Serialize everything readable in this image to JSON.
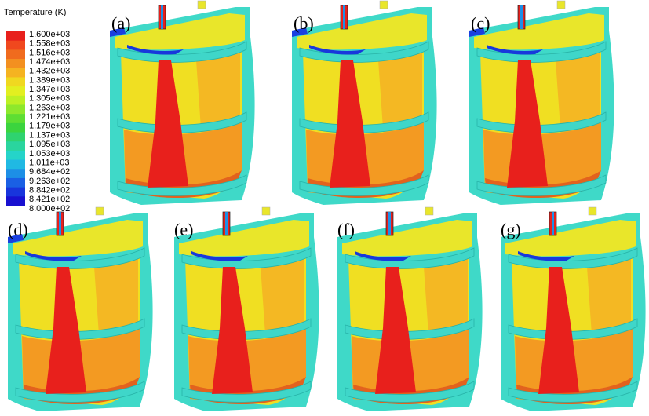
{
  "legend": {
    "title": "Temperature (K)",
    "labels": [
      "1.600e+03",
      "1.558e+03",
      "1.516e+03",
      "1.474e+03",
      "1.432e+03",
      "1.389e+03",
      "1.347e+03",
      "1.305e+03",
      "1.263e+03",
      "1.221e+03",
      "1.179e+03",
      "1.137e+03",
      "1.095e+03",
      "1.053e+03",
      "1.011e+03",
      "9.684e+02",
      "9.263e+02",
      "8.842e+02",
      "8.421e+02",
      "8.000e+02"
    ],
    "colors": [
      "#e8201c",
      "#f0481e",
      "#f06b1e",
      "#f39020",
      "#f5b321",
      "#f0d820",
      "#e3ef20",
      "#bdf024",
      "#8ee82c",
      "#5ede33",
      "#3bd43e",
      "#2fd36f",
      "#2ad59e",
      "#25d4c9",
      "#20b9e3",
      "#1d8fe6",
      "#1a60e4",
      "#1835dc",
      "#1810d0"
    ]
  },
  "panels": [
    "(a)",
    "(b)",
    "(c)",
    "(d)",
    "(e)",
    "(f)",
    "(g)"
  ]
}
